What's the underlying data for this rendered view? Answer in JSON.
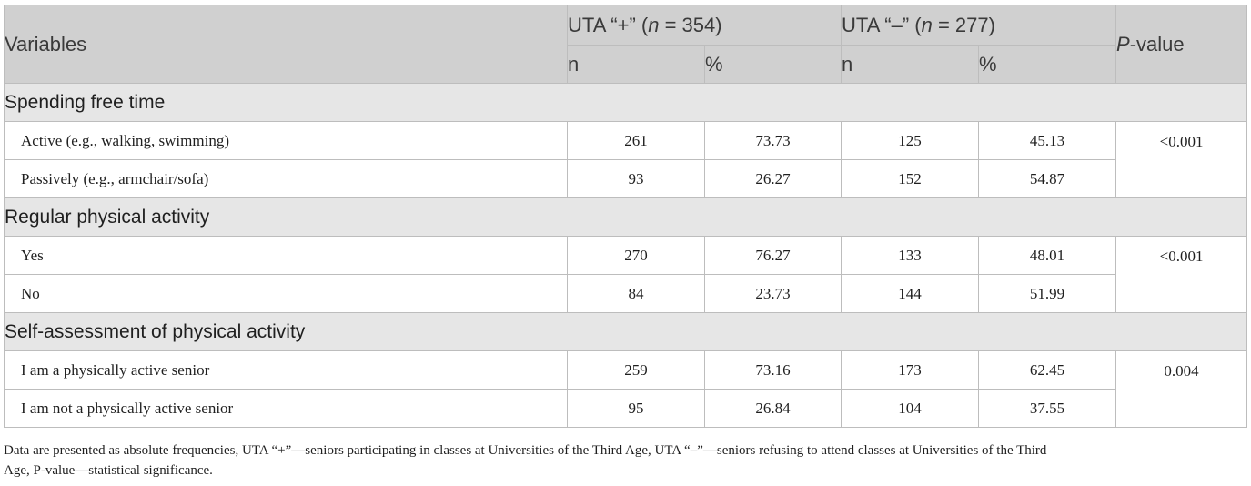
{
  "header": {
    "variables": "Variables",
    "group1": {
      "prefix": "UTA “+” (",
      "n": "n",
      "suffix": " = 354)"
    },
    "group2": {
      "prefix": "UTA “–” (",
      "n": "n",
      "suffix": " = 277)"
    },
    "pvalue": {
      "p": "P",
      "rest": "-value"
    },
    "n_label": "n",
    "pct_label": "%"
  },
  "sections": [
    {
      "title": "Spending free time",
      "pvalue": "<0.001",
      "rows": [
        {
          "name": "Active (e.g., walking, swimming)",
          "n1": "261",
          "p1": "73.73",
          "n2": "125",
          "p2": "45.13"
        },
        {
          "name": "Passively (e.g., armchair/sofa)",
          "n1": "93",
          "p1": "26.27",
          "n2": "152",
          "p2": "54.87"
        }
      ]
    },
    {
      "title": "Regular physical activity",
      "pvalue": "<0.001",
      "rows": [
        {
          "name": "Yes",
          "n1": "270",
          "p1": "76.27",
          "n2": "133",
          "p2": "48.01"
        },
        {
          "name": "No",
          "n1": "84",
          "p1": "23.73",
          "n2": "144",
          "p2": "51.99"
        }
      ]
    },
    {
      "title": "Self-assessment of physical activity",
      "pvalue": "0.004",
      "rows": [
        {
          "name": "I am a physically active senior",
          "n1": "259",
          "p1": "73.16",
          "n2": "173",
          "p2": "62.45"
        },
        {
          "name": "I am not a physically active senior",
          "n1": "95",
          "p1": "26.84",
          "n2": "104",
          "p2": "37.55"
        }
      ]
    }
  ],
  "footnote": {
    "line1": "Data are presented as absolute frequencies, UTA “+”—seniors participating in classes at Universities of the Third Age, UTA “–”—seniors refusing to attend classes at Universities of the Third",
    "line2": "Age, P-value—statistical significance."
  }
}
